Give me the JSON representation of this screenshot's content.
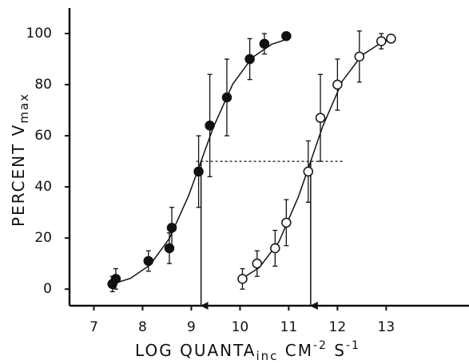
{
  "chart_data": {
    "type": "scatter",
    "y_label": [
      "PERCENT V",
      "max"
    ],
    "x_label": [
      "LOG QUANTA",
      "inc",
      " CM",
      "-2",
      " S",
      "-1"
    ],
    "xlim": [
      6.5,
      14.7
    ],
    "ylim": [
      -6.5,
      110
    ],
    "xticks": [
      7,
      8,
      9,
      10,
      11,
      12,
      13
    ],
    "yticks": [
      0,
      20,
      40,
      60,
      80,
      100
    ],
    "series": [
      {
        "filled": true,
        "x": [
          7.38,
          7.45,
          8.12,
          8.55,
          8.6,
          9.15,
          9.38,
          9.73,
          10.2,
          10.5,
          10.95
        ],
        "values": [
          2,
          4,
          11,
          16,
          24,
          46,
          64,
          75,
          90,
          96,
          99
        ],
        "errors": [
          3,
          4,
          4,
          6,
          8,
          14,
          20,
          15,
          8,
          4,
          0
        ],
        "fit_x": [
          7.35,
          7.75,
          8.15,
          8.55,
          8.95,
          9.2,
          9.45,
          9.85,
          10.25,
          10.65,
          11.0
        ],
        "fit_y": [
          1.8,
          4.2,
          9.4,
          19.8,
          36.8,
          50,
          63.2,
          80.2,
          90.6,
          95.8,
          98.0
        ],
        "arrow_x": 9.2
      },
      {
        "filled": false,
        "x": [
          10.05,
          10.35,
          10.72,
          10.95,
          11.4,
          11.65,
          12.0,
          12.45,
          12.9,
          13.1
        ],
        "values": [
          4,
          10,
          16,
          26,
          46,
          67,
          80,
          91,
          97,
          98
        ],
        "errors": [
          4,
          5,
          7,
          9,
          12,
          17,
          10,
          10,
          3,
          0
        ],
        "fit_x": [
          10.0,
          10.4,
          10.8,
          11.2,
          11.45,
          11.7,
          12.1,
          12.5,
          12.9,
          13.15
        ],
        "fit_y": [
          3.6,
          8.5,
          18.6,
          36.2,
          50,
          63.8,
          81.4,
          91.5,
          96.4,
          97.9
        ],
        "arrow_x": 11.45
      }
    ],
    "dashed_line": {
      "y": 50,
      "x": [
        9.1,
        12.1
      ]
    }
  }
}
